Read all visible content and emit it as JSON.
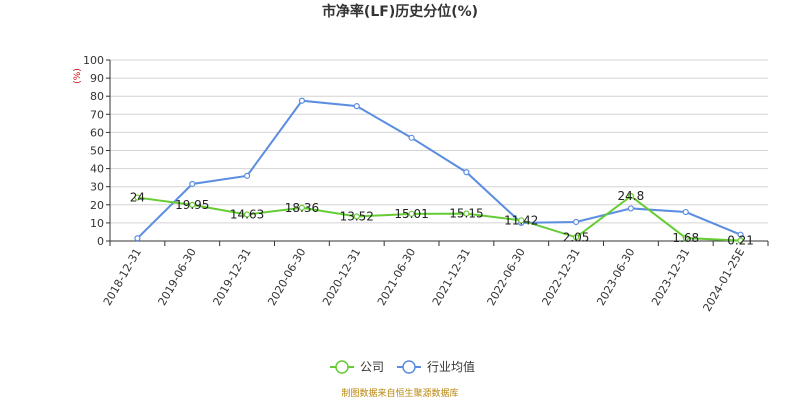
{
  "chart_data": {
    "type": "line",
    "title": "市净率(LF)历史分位(%)",
    "y_unit": "(%)",
    "ylim": [
      0,
      100
    ],
    "y_ticks": [
      0,
      10,
      20,
      30,
      40,
      50,
      60,
      70,
      80,
      90,
      100
    ],
    "grid": true,
    "legend_position": "bottom-center",
    "categories": [
      "2018-12-31",
      "2019-06-30",
      "2019-12-31",
      "2020-06-30",
      "2020-12-31",
      "2021-06-30",
      "2021-12-31",
      "2022-06-30",
      "2022-12-31",
      "2023-06-30",
      "2023-12-31",
      "2024-01-25E"
    ],
    "series": [
      {
        "name": "公司",
        "color": "#66cc33",
        "values": [
          24,
          19.95,
          14.63,
          18.36,
          13.52,
          15.01,
          15.15,
          11.42,
          2.05,
          24.8,
          1.68,
          0.21
        ],
        "labels": [
          "24",
          "19.95",
          "14.63",
          "18.36",
          "13.52",
          "15.01",
          "15.15",
          "11.42",
          "2.05",
          "24.8",
          "1.68",
          "0.21"
        ]
      },
      {
        "name": "行业均值",
        "color": "#5b8de0",
        "values": [
          1.5,
          31.5,
          36,
          77.5,
          74.5,
          57,
          38,
          10,
          10.5,
          18,
          16,
          3.5
        ]
      }
    ],
    "source": "制图数据来自恒生聚源数据库"
  }
}
